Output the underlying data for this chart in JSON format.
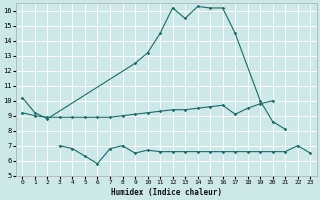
{
  "xlabel": "Humidex (Indice chaleur)",
  "bg_color": "#cce8e8",
  "grid_color": "#ffffff",
  "line_color": "#1a6b6b",
  "xlim": [
    -0.5,
    23.5
  ],
  "ylim": [
    5,
    16.5
  ],
  "xticks": [
    0,
    1,
    2,
    3,
    4,
    5,
    6,
    7,
    8,
    9,
    10,
    11,
    12,
    13,
    14,
    15,
    16,
    17,
    18,
    19,
    20,
    21,
    22,
    23
  ],
  "yticks": [
    5,
    6,
    7,
    8,
    9,
    10,
    11,
    12,
    13,
    14,
    15,
    16
  ],
  "line1_x": [
    0,
    1,
    2,
    9,
    10,
    11,
    12,
    13,
    14,
    15,
    16,
    17,
    19,
    20,
    21
  ],
  "line1_y": [
    10.2,
    9.2,
    8.8,
    12.5,
    13.2,
    14.5,
    16.2,
    15.5,
    16.3,
    16.2,
    16.2,
    14.5,
    10.0,
    8.6,
    8.1
  ],
  "line2_x": [
    0,
    1,
    2,
    3,
    4,
    5,
    6,
    7,
    8,
    9,
    10,
    11,
    12,
    13,
    14,
    15,
    16,
    17,
    18,
    19,
    20
  ],
  "line2_y": [
    9.2,
    9.0,
    8.9,
    8.9,
    8.9,
    8.9,
    8.9,
    8.9,
    9.0,
    9.1,
    9.2,
    9.3,
    9.4,
    9.4,
    9.5,
    9.6,
    9.7,
    9.1,
    9.5,
    9.8,
    10.0
  ],
  "line3_x": [
    3,
    4,
    5,
    6,
    7,
    8,
    9,
    10,
    11,
    12,
    13,
    14,
    15,
    16,
    17,
    18,
    19,
    20,
    21,
    22,
    23
  ],
  "line3_y": [
    7.0,
    6.8,
    6.3,
    5.8,
    6.8,
    7.0,
    6.5,
    6.7,
    6.6,
    6.6,
    6.6,
    6.6,
    6.6,
    6.6,
    6.6,
    6.6,
    6.6,
    6.6,
    6.6,
    7.0,
    6.5
  ]
}
